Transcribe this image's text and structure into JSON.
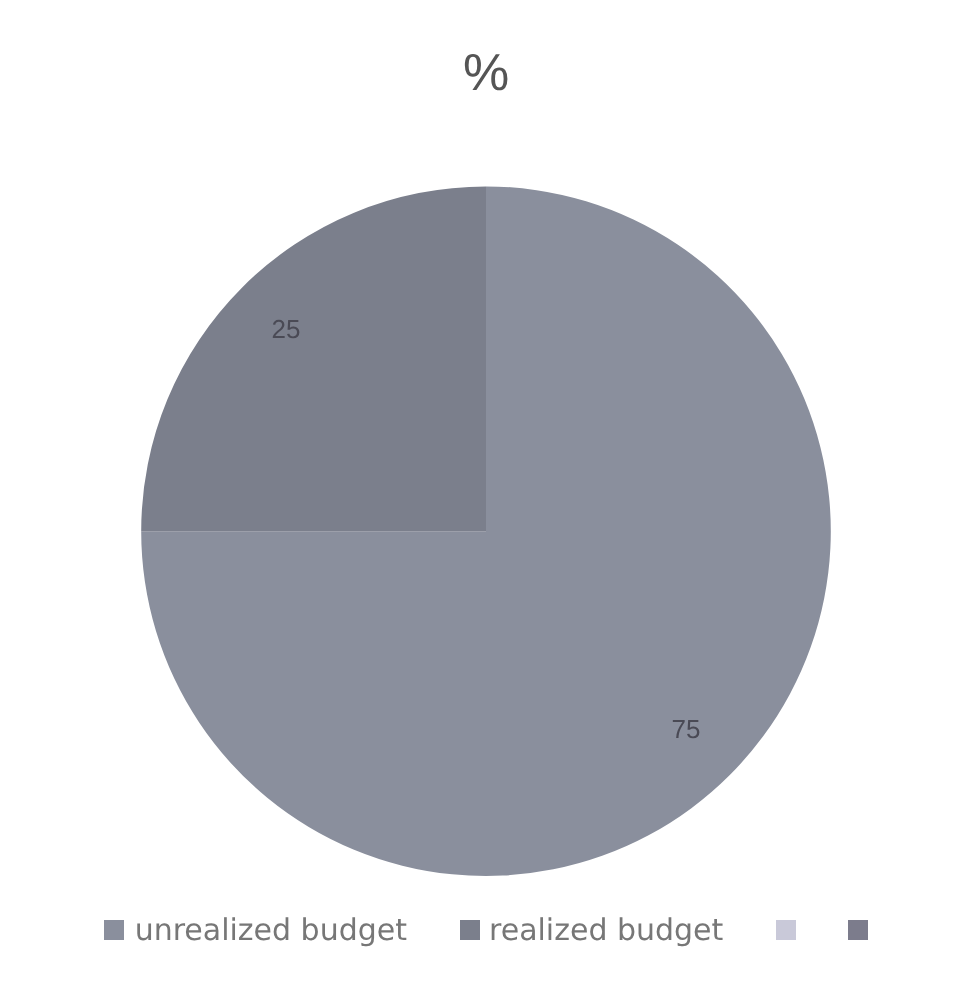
{
  "chart_data": {
    "type": "pie",
    "title": "%",
    "categories": [
      "unrealized budget",
      "realized budget",
      null,
      null
    ],
    "values": [
      75,
      25,
      0,
      0
    ],
    "colors": [
      "#8a8f9d",
      "#7b7f8c",
      "#c9c9d9",
      "#7c7c8c"
    ],
    "data_labels": true,
    "legend": "bottom"
  }
}
